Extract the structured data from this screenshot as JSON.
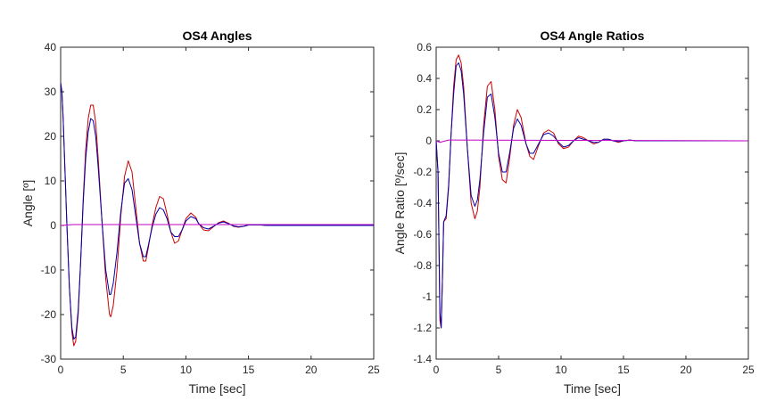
{
  "chart_data": [
    {
      "type": "line",
      "title": "OS4 Angles",
      "xlabel": "Time   [sec]",
      "ylabel": "Angle   [º]",
      "xlim": [
        0,
        25
      ],
      "ylim": [
        -30,
        40
      ],
      "xticks": [
        "0",
        "5",
        "10",
        "15",
        "20",
        "25"
      ],
      "yticks": [
        "-30",
        "-20",
        "-10",
        "0",
        "10",
        "20",
        "30",
        "40"
      ],
      "grid": false,
      "series": [
        {
          "color": "#cc0000",
          "x": [
            0,
            0.1,
            0.2,
            0.35,
            0.5,
            0.7,
            0.9,
            1.05,
            1.2,
            1.4,
            1.6,
            1.8,
            2.0,
            2.2,
            2.4,
            2.6,
            2.8,
            3.0,
            3.3,
            3.6,
            3.9,
            4.0,
            4.2,
            4.5,
            4.8,
            5.1,
            5.4,
            5.7,
            6.0,
            6.3,
            6.6,
            6.8,
            7.0,
            7.3,
            7.6,
            7.9,
            8.2,
            8.5,
            8.8,
            9.1,
            9.4,
            9.7,
            10.0,
            10.4,
            10.8,
            11.0,
            11.4,
            11.8,
            12.2,
            12.6,
            13.0,
            13.4,
            13.8,
            14.2,
            14.6,
            15.0,
            15.5,
            16.0,
            16.5,
            17.0,
            18.0,
            19.0,
            20.0,
            21.0,
            22.0,
            23.0,
            24.0,
            25.0
          ],
          "y": [
            32,
            30,
            24,
            12,
            0,
            -14,
            -24,
            -27,
            -26,
            -20,
            -8,
            6,
            17,
            24,
            27,
            27,
            23,
            15,
            1,
            -12,
            -20,
            -20.5,
            -18,
            -10,
            2,
            11,
            14.5,
            12,
            4,
            -4,
            -8,
            -8,
            -5,
            0,
            4,
            6.5,
            6,
            2.5,
            -1.5,
            -4,
            -3.5,
            -1,
            1.5,
            2.8,
            1.8,
            0.5,
            -1,
            -1.2,
            -0.3,
            0.6,
            1,
            0.5,
            -0.2,
            -0.4,
            -0.2,
            0.1,
            0.2,
            0.1,
            0,
            0,
            0,
            0,
            0,
            0,
            0,
            0,
            0,
            0
          ]
        },
        {
          "color": "#0000aa",
          "x": [
            0,
            0.1,
            0.2,
            0.35,
            0.5,
            0.7,
            0.9,
            1.05,
            1.2,
            1.4,
            1.6,
            1.8,
            2.0,
            2.2,
            2.4,
            2.6,
            2.8,
            3.0,
            3.3,
            3.6,
            3.9,
            4.0,
            4.2,
            4.5,
            4.8,
            5.1,
            5.4,
            5.7,
            6.0,
            6.3,
            6.6,
            6.8,
            7.0,
            7.3,
            7.6,
            7.9,
            8.2,
            8.5,
            8.8,
            9.1,
            9.4,
            9.7,
            10.0,
            10.4,
            10.8,
            11.0,
            11.4,
            11.8,
            12.2,
            12.6,
            13.0,
            13.4,
            13.8,
            14.2,
            14.6,
            15.0,
            15.5,
            16.0,
            16.5,
            17.0,
            18.0,
            19.0,
            20.0,
            21.0,
            22.0,
            23.0,
            24.0,
            25.0
          ],
          "y": [
            32,
            30,
            24,
            12,
            0,
            -14,
            -23,
            -25.5,
            -25,
            -19,
            -8,
            5,
            15,
            21,
            24,
            23.5,
            20,
            13,
            1,
            -10,
            -15.5,
            -15.5,
            -13,
            -6,
            3,
            9.5,
            10.5,
            8,
            2,
            -4,
            -7,
            -7,
            -4.5,
            -0.5,
            2.5,
            4,
            3.5,
            1.5,
            -1.5,
            -2.5,
            -2.5,
            -1,
            1,
            2,
            1.5,
            0.5,
            -0.5,
            -0.8,
            -0.2,
            0.5,
            0.8,
            0.4,
            -0.1,
            -0.3,
            -0.2,
            0.1,
            0.1,
            0.1,
            0,
            0,
            0,
            0,
            0,
            0,
            0,
            0,
            0,
            0
          ]
        },
        {
          "color": "#c000c0",
          "x": [
            0,
            1,
            25
          ],
          "y": [
            0,
            0.2,
            0.2
          ]
        }
      ]
    },
    {
      "type": "line",
      "title": "OS4 Angle Ratios",
      "xlabel": "Time   [sec]",
      "ylabel": "Angle Ratio   [º/sec]",
      "xlim": [
        0,
        25
      ],
      "ylim": [
        -1.4,
        0.6
      ],
      "xticks": [
        "0",
        "5",
        "10",
        "15",
        "20",
        "25"
      ],
      "yticks": [
        "-1.4",
        "-1.2",
        "-1",
        "-0.8",
        "-0.6",
        "-0.4",
        "-0.2",
        "0",
        "0.2",
        "0.4",
        "0.6"
      ],
      "grid": false,
      "series": [
        {
          "color": "#cc0000",
          "x": [
            0,
            0.15,
            0.3,
            0.4,
            0.5,
            0.6,
            0.8,
            1.0,
            1.2,
            1.4,
            1.6,
            1.8,
            2.0,
            2.2,
            2.5,
            2.8,
            3.1,
            3.3,
            3.5,
            3.8,
            4.1,
            4.4,
            4.7,
            5.0,
            5.3,
            5.6,
            5.9,
            6.2,
            6.5,
            6.8,
            7.2,
            7.5,
            7.8,
            8.2,
            8.6,
            9.0,
            9.4,
            9.8,
            10.2,
            10.6,
            11.0,
            11.4,
            11.8,
            12.2,
            12.6,
            13.0,
            13.4,
            13.8,
            14.2,
            14.6,
            15.0,
            15.5,
            16.0,
            16.5,
            17.0,
            18.0,
            19.0,
            20.0,
            21.0,
            22.0,
            23.0,
            24.0,
            25.0
          ],
          "y": [
            0,
            -0.2,
            -1.15,
            -1.2,
            -0.9,
            -0.52,
            -0.5,
            -0.3,
            0.05,
            0.35,
            0.52,
            0.55,
            0.5,
            0.35,
            -0.05,
            -0.4,
            -0.5,
            -0.45,
            -0.3,
            0.1,
            0.35,
            0.38,
            0.2,
            -0.1,
            -0.25,
            -0.27,
            -0.1,
            0.1,
            0.2,
            0.15,
            -0.02,
            -0.1,
            -0.12,
            -0.03,
            0.05,
            0.07,
            0.05,
            -0.02,
            -0.05,
            -0.04,
            0,
            0.03,
            0.02,
            0,
            -0.02,
            -0.01,
            0.01,
            0.01,
            0,
            -0.01,
            0,
            0.005,
            0,
            0,
            0,
            0,
            0,
            0,
            0,
            0,
            0,
            0,
            0
          ]
        },
        {
          "color": "#0000aa",
          "x": [
            0,
            0.15,
            0.3,
            0.4,
            0.5,
            0.6,
            0.8,
            1.0,
            1.2,
            1.4,
            1.6,
            1.8,
            2.0,
            2.2,
            2.5,
            2.8,
            3.1,
            3.3,
            3.5,
            3.8,
            4.1,
            4.4,
            4.7,
            5.0,
            5.3,
            5.6,
            5.9,
            6.2,
            6.5,
            6.8,
            7.2,
            7.5,
            7.8,
            8.2,
            8.6,
            9.0,
            9.4,
            9.8,
            10.2,
            10.6,
            11.0,
            11.4,
            11.8,
            12.2,
            12.6,
            13.0,
            13.4,
            13.8,
            14.2,
            14.6,
            15.0,
            15.5,
            16.0,
            16.5,
            17.0,
            18.0,
            19.0,
            20.0,
            21.0,
            22.0,
            23.0,
            24.0,
            25.0
          ],
          "y": [
            0,
            -0.2,
            -1.1,
            -1.2,
            -0.9,
            -0.52,
            -0.48,
            -0.28,
            0.05,
            0.3,
            0.48,
            0.5,
            0.45,
            0.3,
            -0.05,
            -0.35,
            -0.42,
            -0.38,
            -0.25,
            0.05,
            0.28,
            0.3,
            0.15,
            -0.08,
            -0.2,
            -0.2,
            -0.07,
            0.08,
            0.14,
            0.1,
            -0.02,
            -0.08,
            -0.08,
            -0.02,
            0.04,
            0.05,
            0.03,
            -0.01,
            -0.04,
            -0.03,
            0,
            0.02,
            0.01,
            0,
            -0.01,
            -0.01,
            0.01,
            0.01,
            0,
            -0.005,
            0,
            0.005,
            0,
            0,
            0,
            0,
            0,
            0,
            0,
            0,
            0,
            0,
            0
          ]
        },
        {
          "color": "#c000c0",
          "x": [
            0,
            0.3,
            1,
            25
          ],
          "y": [
            0,
            -0.01,
            0.005,
            0
          ]
        }
      ]
    }
  ]
}
